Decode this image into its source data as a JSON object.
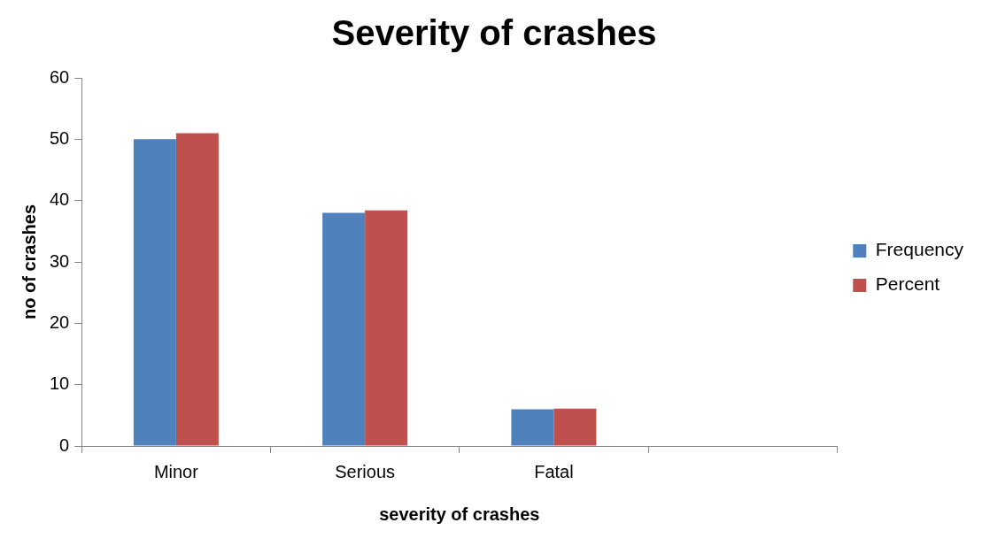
{
  "chart_data": {
    "type": "bar",
    "title": "Severity of crashes",
    "xlabel": "severity of crashes",
    "ylabel": "no of crashes",
    "categories": [
      "Minor",
      "Serious",
      "Fatal",
      null
    ],
    "series": [
      {
        "name": "Frequency",
        "color": "#4f81bd",
        "values": [
          50,
          38,
          6,
          null
        ]
      },
      {
        "name": "Percent",
        "color": "#c0504d",
        "values": [
          51,
          38.4,
          6.1,
          null
        ]
      }
    ],
    "ylim": [
      0,
      60
    ],
    "yticks": [
      0,
      10,
      20,
      30,
      40,
      50,
      60
    ],
    "grid": false,
    "legend": "right"
  }
}
